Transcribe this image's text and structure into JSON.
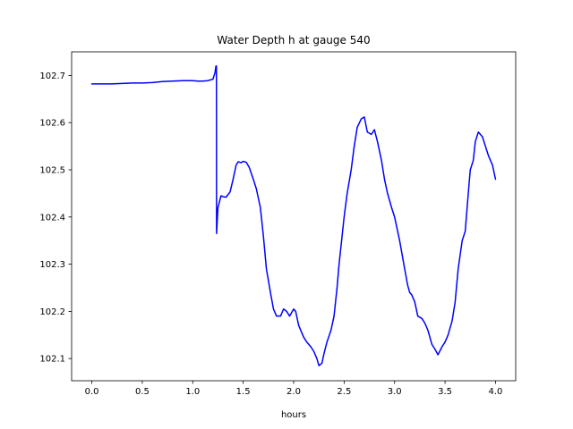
{
  "chart_data": {
    "type": "line",
    "title": "Water Depth h at gauge 540",
    "xlabel": "hours",
    "ylabel": "",
    "xlim": [
      -0.2,
      4.2
    ],
    "ylim": [
      102.053,
      102.75
    ],
    "grid": false,
    "xticks": [
      0.0,
      0.5,
      1.0,
      1.5,
      2.0,
      2.5,
      3.0,
      3.5,
      4.0
    ],
    "xtick_labels": [
      "0.0",
      "0.5",
      "1.0",
      "1.5",
      "2.0",
      "2.5",
      "3.0",
      "3.5",
      "4.0"
    ],
    "yticks": [
      102.1,
      102.2,
      102.3,
      102.4,
      102.5,
      102.6,
      102.7
    ],
    "ytick_labels": [
      "102.1",
      "102.2",
      "102.3",
      "102.4",
      "102.5",
      "102.6",
      "102.7"
    ],
    "line_color": "#0000ff",
    "series": [
      {
        "x": [
          0.0,
          0.1,
          0.2,
          0.3,
          0.4,
          0.5,
          0.6,
          0.7,
          0.8,
          0.9,
          1.0,
          1.05,
          1.1,
          1.15,
          1.2,
          1.22,
          1.23,
          1.235,
          1.236,
          1.25,
          1.28,
          1.3,
          1.33,
          1.37,
          1.4,
          1.43,
          1.45,
          1.48,
          1.5,
          1.53,
          1.56,
          1.6,
          1.63,
          1.67,
          1.7,
          1.73,
          1.77,
          1.8,
          1.83,
          1.87,
          1.9,
          1.93,
          1.96,
          2.0,
          2.02,
          2.05,
          2.08,
          2.1,
          2.13,
          2.17,
          2.2,
          2.23,
          2.25,
          2.28,
          2.3,
          2.33,
          2.37,
          2.4,
          2.43,
          2.45,
          2.48,
          2.5,
          2.53,
          2.57,
          2.6,
          2.63,
          2.67,
          2.7,
          2.73,
          2.77,
          2.8,
          2.83,
          2.87,
          2.9,
          2.93,
          2.97,
          3.0,
          3.05,
          3.1,
          3.13,
          3.15,
          3.17,
          3.2,
          3.23,
          3.27,
          3.3,
          3.33,
          3.37,
          3.4,
          3.43,
          3.47,
          3.5,
          3.53,
          3.57,
          3.6,
          3.63,
          3.67,
          3.7,
          3.73,
          3.75,
          3.78,
          3.8,
          3.83,
          3.87,
          3.9,
          3.93,
          3.97,
          4.0
        ],
        "y": [
          102.682,
          102.682,
          102.682,
          102.683,
          102.684,
          102.684,
          102.685,
          102.687,
          102.688,
          102.689,
          102.689,
          102.688,
          102.688,
          102.689,
          102.692,
          102.705,
          102.72,
          102.72,
          102.365,
          102.42,
          102.445,
          102.443,
          102.442,
          102.453,
          102.48,
          102.51,
          102.517,
          102.515,
          102.518,
          102.516,
          102.505,
          102.48,
          102.46,
          102.42,
          102.36,
          102.29,
          102.24,
          102.205,
          102.19,
          102.19,
          102.205,
          102.2,
          102.19,
          102.205,
          102.2,
          102.17,
          102.155,
          102.145,
          102.135,
          102.125,
          102.115,
          102.1,
          102.085,
          102.09,
          102.11,
          102.135,
          102.16,
          102.19,
          102.25,
          102.3,
          102.36,
          102.4,
          102.45,
          102.5,
          102.55,
          102.59,
          102.608,
          102.612,
          102.58,
          102.575,
          102.585,
          102.56,
          102.52,
          102.48,
          102.45,
          102.42,
          102.4,
          102.35,
          102.29,
          102.255,
          102.24,
          102.235,
          102.22,
          102.19,
          102.185,
          102.175,
          102.16,
          102.13,
          102.12,
          102.108,
          102.125,
          102.135,
          102.15,
          102.18,
          102.22,
          102.29,
          102.35,
          102.37,
          102.45,
          102.5,
          102.52,
          102.56,
          102.58,
          102.57,
          102.55,
          102.53,
          102.51,
          102.48
        ]
      }
    ]
  }
}
